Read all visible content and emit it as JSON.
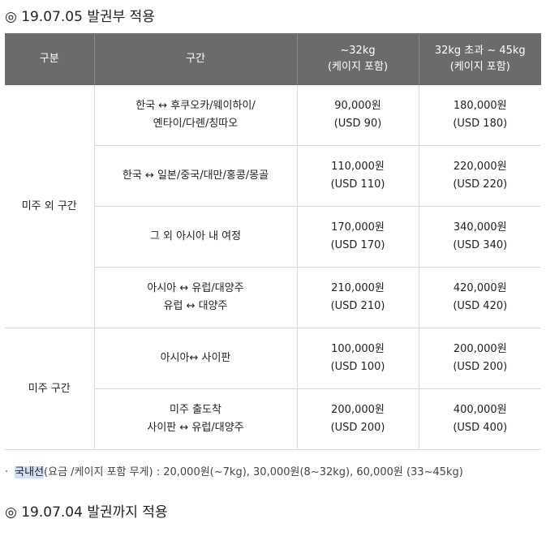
{
  "heading_top": "◎ 19.07.05 발권부 적용",
  "table": {
    "headers": [
      {
        "line1": "구분",
        "line2": ""
      },
      {
        "line1": "구간",
        "line2": ""
      },
      {
        "line1": "~32kg",
        "line2": "(케이지 포함)"
      },
      {
        "line1": "32kg 초과 ~ 45kg",
        "line2": "(케이지 포함)"
      }
    ],
    "groups": [
      {
        "label": "미주 외 구간",
        "rows": [
          {
            "route1": "한국 ↔ 후쿠오카/웨이하이/",
            "route2": "옌타이/다롄/칭따오",
            "p1_krw": "90,000원",
            "p1_usd": "(USD 90)",
            "p2_krw": "180,000원",
            "p2_usd": "(USD 180)"
          },
          {
            "route1": "한국 ↔ 일본/중국/대만/홍콩/몽골",
            "route2": "",
            "p1_krw": "110,000원",
            "p1_usd": "(USD 110)",
            "p2_krw": "220,000원",
            "p2_usd": "(USD 220)"
          },
          {
            "route1": "그 외 아시아 내 여정",
            "route2": "",
            "p1_krw": "170,000원",
            "p1_usd": "(USD 170)",
            "p2_krw": "340,000원",
            "p2_usd": "(USD 340)"
          },
          {
            "route1": "아시아 ↔ 유럽/대양주",
            "route2": "유럽 ↔ 대양주",
            "p1_krw": "210,000원",
            "p1_usd": "(USD 210)",
            "p2_krw": "420,000원",
            "p2_usd": "(USD 420)"
          }
        ]
      },
      {
        "label": "미주 구간",
        "rows": [
          {
            "route1": "아시아↔ 사이판",
            "route2": "",
            "p1_krw": "100,000원",
            "p1_usd": "(USD 100)",
            "p2_krw": "200,000원",
            "p2_usd": "(USD 200)"
          },
          {
            "route1": "미주 출도착",
            "route2": "사이판 ↔ 유럽/대양주",
            "p1_krw": "200,000원",
            "p1_usd": "(USD 200)",
            "p2_krw": "400,000원",
            "p2_usd": "(USD 400)"
          }
        ]
      }
    ]
  },
  "note": {
    "bullet": "·",
    "highlight": "국내선",
    "text": "(요금 /케이지 포함 무게) : 20,000원(~7kg), 30,000원(8~32kg), 60,000원 (33~45kg)"
  },
  "heading_bottom": "◎ 19.07.04 발권까지 적용",
  "colors": {
    "header_bg": "#6b6b6b",
    "border": "#d9d9d9",
    "highlight": "#cfe0f6"
  }
}
